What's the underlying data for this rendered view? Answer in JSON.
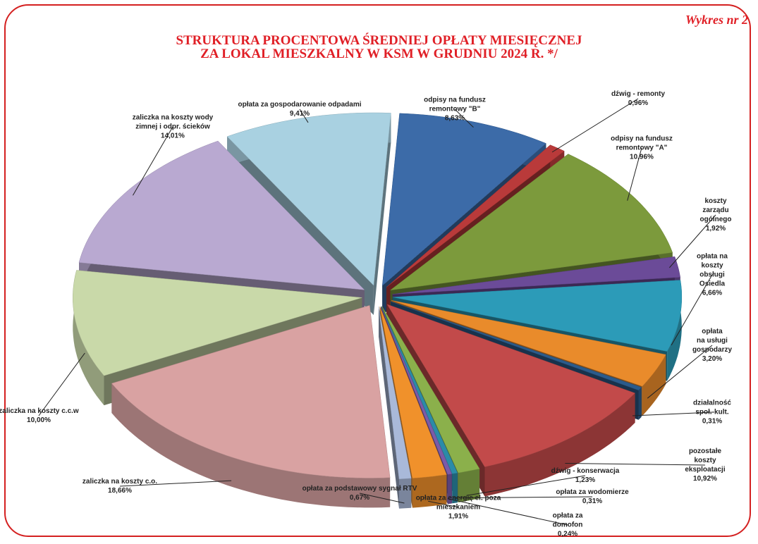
{
  "chart_data": {
    "type": "pie",
    "title": "STRUKTURA PROCENTOWA ŚREDNIEJ OPŁATY MIESIĘCZNEJ\nZA LOKAL MIESZKALNY W KSM W GRUDNIU 2024 R. */",
    "subtitle": "Wykres nr 2",
    "categories": [
      "odpisy na fundusz\nremontowy \"B\"",
      "dźwig - remonty",
      "odpisy na  fundusz\nremontowy  \"A\"",
      "koszty zarządu ogólnego",
      "opłata na koszty\nobsługi Osiedla",
      "opłata\nna usługi\ngospodarzy",
      "działalność\nspoł.-kult.",
      "pozostałe koszty\neksploatacji",
      "dźwig - konserwacja",
      "opłata  za wodomierze",
      "opłata za\ndomofon",
      "opłata za energię el. poza\nmieszkaniem",
      "opłata za podstawowy sygnał RTV",
      "zaliczka na koszty c.o.",
      "zaliczka na koszty c.c.w",
      "zaliczka na koszty wody\nzimnej i odpr. ścieków",
      "opłata za gospodarowanie odpadami"
    ],
    "values": [
      8.63,
      0.96,
      10.96,
      1.92,
      6.66,
      3.2,
      0.31,
      10.92,
      1.23,
      0.31,
      0.24,
      1.91,
      0.67,
      18.66,
      10.0,
      14.01,
      9.41
    ],
    "value_labels": [
      "8,63%",
      "0,96%",
      "10,96%",
      "1,92%",
      "6,66%",
      "3,20%",
      "0,31%",
      "10,92%",
      "1,23%",
      "0,31%",
      "0,24%",
      "1,91%",
      "0,67%",
      "18,66%",
      "10,00%",
      "14,01%",
      "9,41%"
    ],
    "colors": [
      "#3c6ba8",
      "#b93a3a",
      "#7c9a3c",
      "#6b4b98",
      "#2c9bb8",
      "#e98b2b",
      "#2b5b8b",
      "#c24a4a",
      "#8bb04b",
      "#2b8ba8",
      "#7b5ba8",
      "#f0912b",
      "#a9b9d9",
      "#d9a2a2",
      "#c9d9a9",
      "#b9a9d1",
      "#a9d1e1"
    ]
  }
}
